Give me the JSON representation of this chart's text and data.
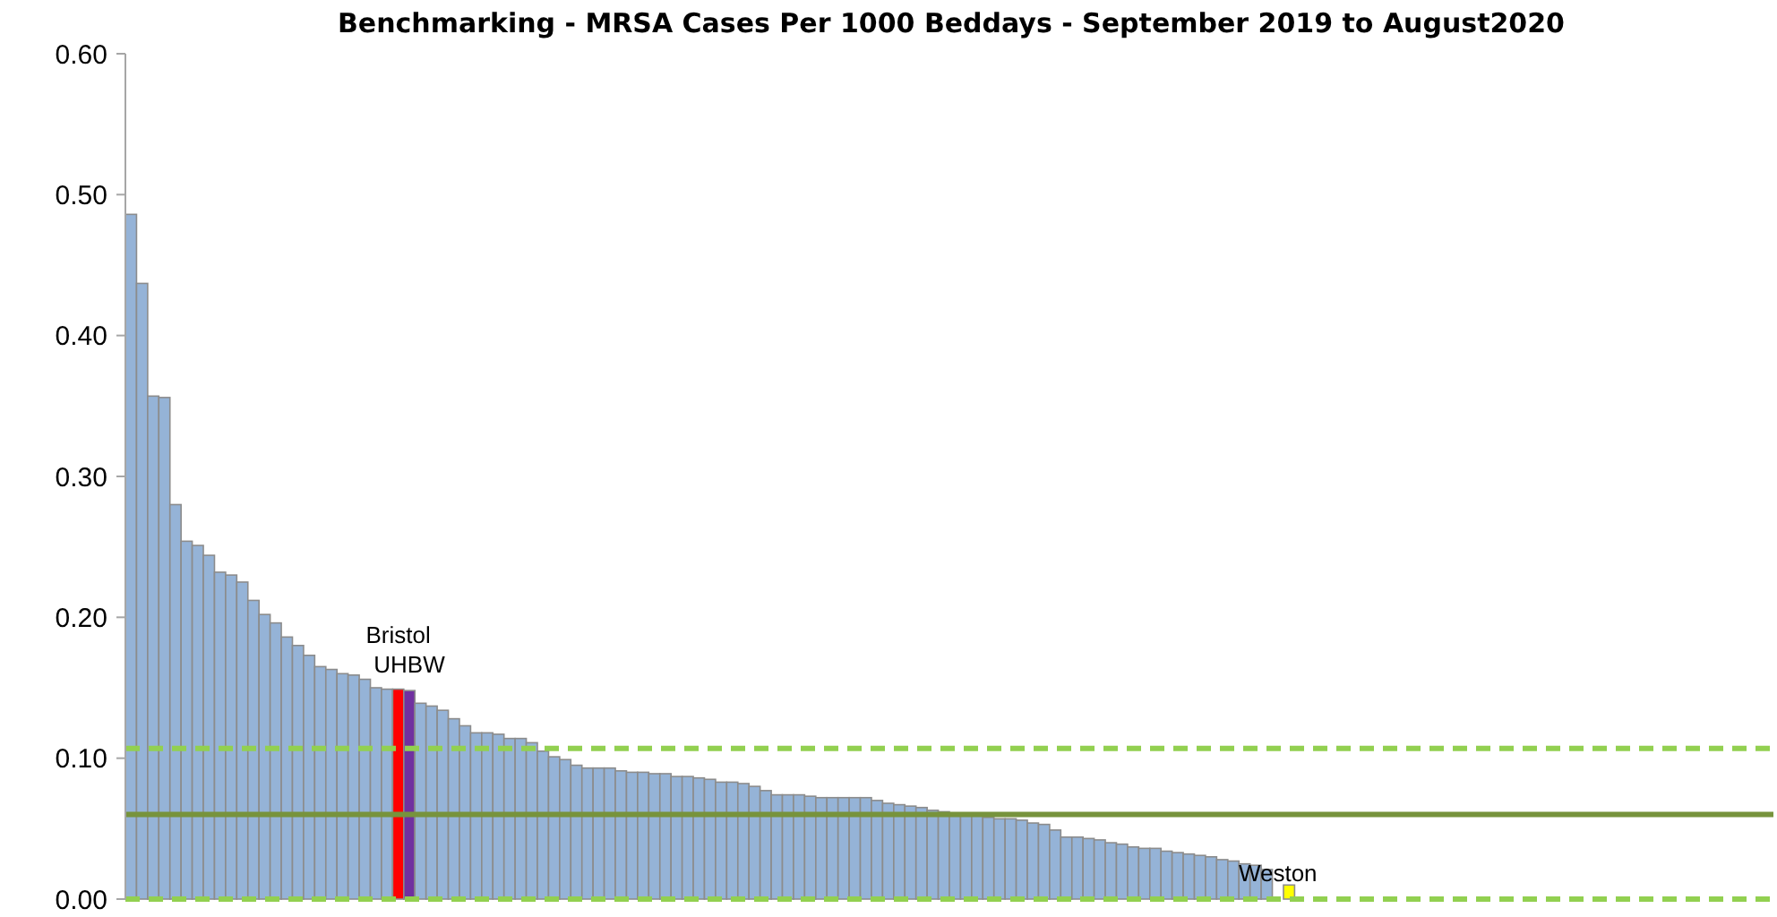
{
  "chart_data": {
    "type": "bar",
    "title": "Benchmarking - MRSA Cases Per 1000 Beddays - September 2019 to August2020",
    "categories": [
      null,
      null,
      null,
      null,
      null,
      null,
      null,
      null,
      null,
      null,
      null,
      null,
      null,
      null,
      null,
      null,
      null,
      null,
      null,
      null,
      null,
      null,
      null,
      null,
      "Bristol",
      "UHBW",
      null,
      null,
      null,
      null,
      null,
      null,
      null,
      null,
      null,
      null,
      null,
      null,
      null,
      null,
      null,
      null,
      null,
      null,
      null,
      null,
      null,
      null,
      null,
      null,
      null,
      null,
      null,
      null,
      null,
      null,
      null,
      null,
      null,
      null,
      null,
      null,
      null,
      null,
      null,
      null,
      null,
      null,
      null,
      null,
      null,
      null,
      null,
      null,
      null,
      null,
      null,
      null,
      null,
      null,
      null,
      null,
      null,
      null,
      null,
      null,
      null,
      null,
      null,
      null,
      null,
      null,
      null,
      null,
      null,
      null,
      null,
      null,
      null,
      null,
      null,
      null,
      null,
      "Weston",
      null,
      null,
      null,
      null,
      null,
      null,
      null,
      null,
      null,
      null,
      null,
      null,
      null,
      null,
      null,
      null,
      null,
      null,
      null,
      null,
      null,
      null,
      null,
      null,
      null,
      null,
      null,
      null,
      null,
      null,
      null,
      null,
      null,
      null,
      null,
      null,
      null,
      null,
      null,
      null,
      null,
      null,
      null,
      null
    ],
    "values": [
      0.486,
      0.437,
      0.357,
      0.356,
      0.28,
      0.254,
      0.251,
      0.244,
      0.232,
      0.23,
      0.225,
      0.212,
      0.202,
      0.196,
      0.186,
      0.18,
      0.173,
      0.165,
      0.163,
      0.16,
      0.159,
      0.156,
      0.15,
      0.149,
      0.149,
      0.148,
      0.139,
      0.137,
      0.134,
      0.128,
      0.123,
      0.118,
      0.118,
      0.117,
      0.114,
      0.114,
      0.111,
      0.105,
      0.101,
      0.099,
      0.095,
      0.093,
      0.093,
      0.093,
      0.091,
      0.09,
      0.09,
      0.089,
      0.089,
      0.087,
      0.087,
      0.086,
      0.085,
      0.083,
      0.083,
      0.082,
      0.08,
      0.077,
      0.074,
      0.074,
      0.074,
      0.073,
      0.072,
      0.072,
      0.072,
      0.072,
      0.072,
      0.07,
      0.068,
      0.067,
      0.066,
      0.065,
      0.063,
      0.062,
      0.061,
      0.06,
      0.059,
      0.058,
      0.057,
      0.057,
      0.056,
      0.054,
      0.053,
      0.049,
      0.044,
      0.044,
      0.043,
      0.042,
      0.04,
      0.039,
      0.037,
      0.036,
      0.036,
      0.034,
      0.033,
      0.032,
      0.031,
      0.03,
      0.028,
      0.027,
      0.025,
      0.024,
      0.021,
      0,
      0.01,
      0,
      0,
      0,
      0,
      0,
      0,
      0,
      0,
      0,
      0,
      0,
      0,
      0,
      0,
      0,
      0,
      0,
      0,
      0,
      0,
      0,
      0,
      0,
      0,
      0,
      0,
      0,
      0,
      0,
      0,
      0,
      0,
      0,
      0,
      0,
      0,
      0,
      0,
      0,
      0,
      0,
      0,
      0
    ],
    "colors": [
      "#95b3d7",
      "#95b3d7",
      "#95b3d7",
      "#95b3d7",
      "#95b3d7",
      "#95b3d7",
      "#95b3d7",
      "#95b3d7",
      "#95b3d7",
      "#95b3d7",
      "#95b3d7",
      "#95b3d7",
      "#95b3d7",
      "#95b3d7",
      "#95b3d7",
      "#95b3d7",
      "#95b3d7",
      "#95b3d7",
      "#95b3d7",
      "#95b3d7",
      "#95b3d7",
      "#95b3d7",
      "#95b3d7",
      "#95b3d7",
      "#ff0000",
      "#7030a0",
      "#95b3d7",
      "#95b3d7",
      "#95b3d7",
      "#95b3d7",
      "#95b3d7",
      "#95b3d7",
      "#95b3d7",
      "#95b3d7",
      "#95b3d7",
      "#95b3d7",
      "#95b3d7",
      "#95b3d7",
      "#95b3d7",
      "#95b3d7",
      "#95b3d7",
      "#95b3d7",
      "#95b3d7",
      "#95b3d7",
      "#95b3d7",
      "#95b3d7",
      "#95b3d7",
      "#95b3d7",
      "#95b3d7",
      "#95b3d7",
      "#95b3d7",
      "#95b3d7",
      "#95b3d7",
      "#95b3d7",
      "#95b3d7",
      "#95b3d7",
      "#95b3d7",
      "#95b3d7",
      "#95b3d7",
      "#95b3d7",
      "#95b3d7",
      "#95b3d7",
      "#95b3d7",
      "#95b3d7",
      "#95b3d7",
      "#95b3d7",
      "#95b3d7",
      "#95b3d7",
      "#95b3d7",
      "#95b3d7",
      "#95b3d7",
      "#95b3d7",
      "#95b3d7",
      "#95b3d7",
      "#95b3d7",
      "#95b3d7",
      "#95b3d7",
      "#95b3d7",
      "#95b3d7",
      "#95b3d7",
      "#95b3d7",
      "#95b3d7",
      "#95b3d7",
      "#95b3d7",
      "#95b3d7",
      "#95b3d7",
      "#95b3d7",
      "#95b3d7",
      "#95b3d7",
      "#95b3d7",
      "#95b3d7",
      "#95b3d7",
      "#95b3d7",
      "#95b3d7",
      "#95b3d7",
      "#95b3d7",
      "#95b3d7",
      "#95b3d7",
      "#95b3d7",
      "#95b3d7",
      "#95b3d7",
      "#95b3d7",
      "#95b3d7",
      "#95b3d7",
      "#ffff00",
      "#95b3d7",
      "#95b3d7",
      "#95b3d7",
      "#95b3d7",
      "#95b3d7",
      "#95b3d7",
      "#95b3d7",
      "#95b3d7",
      "#95b3d7",
      "#95b3d7",
      "#95b3d7",
      "#95b3d7",
      "#95b3d7",
      "#95b3d7",
      "#95b3d7",
      "#95b3d7",
      "#95b3d7",
      "#95b3d7",
      "#95b3d7",
      "#95b3d7",
      "#95b3d7",
      "#95b3d7",
      "#95b3d7",
      "#95b3d7",
      "#95b3d7",
      "#95b3d7",
      "#95b3d7",
      "#95b3d7",
      "#95b3d7",
      "#95b3d7",
      "#95b3d7",
      "#95b3d7",
      "#95b3d7",
      "#95b3d7",
      "#95b3d7",
      "#95b3d7",
      "#95b3d7",
      "#95b3d7",
      "#95b3d7",
      "#95b3d7",
      "#95b3d7",
      "#95b3d7",
      "#95b3d7"
    ],
    "ylim": [
      0,
      0.6
    ],
    "yticks": [
      {
        "value": 0,
        "label": "0.00"
      },
      {
        "value": 0.1,
        "label": "0.10"
      },
      {
        "value": 0.2,
        "label": "0.20"
      },
      {
        "value": 0.3,
        "label": "0.30"
      },
      {
        "value": 0.4,
        "label": "0.40"
      },
      {
        "value": 0.5,
        "label": "0.50"
      },
      {
        "value": 0.6,
        "label": "0.60"
      }
    ],
    "tick_labels": "y",
    "ref_lines": [
      {
        "axis": "y",
        "value": 0.107,
        "color": "#92d050",
        "line_style": "dashed"
      },
      {
        "axis": "y",
        "value": 0.06,
        "color": "#77933c",
        "line_style": "solid"
      },
      {
        "axis": "y",
        "value": 0,
        "color": "#92d050",
        "line_style": "dashed"
      }
    ]
  }
}
